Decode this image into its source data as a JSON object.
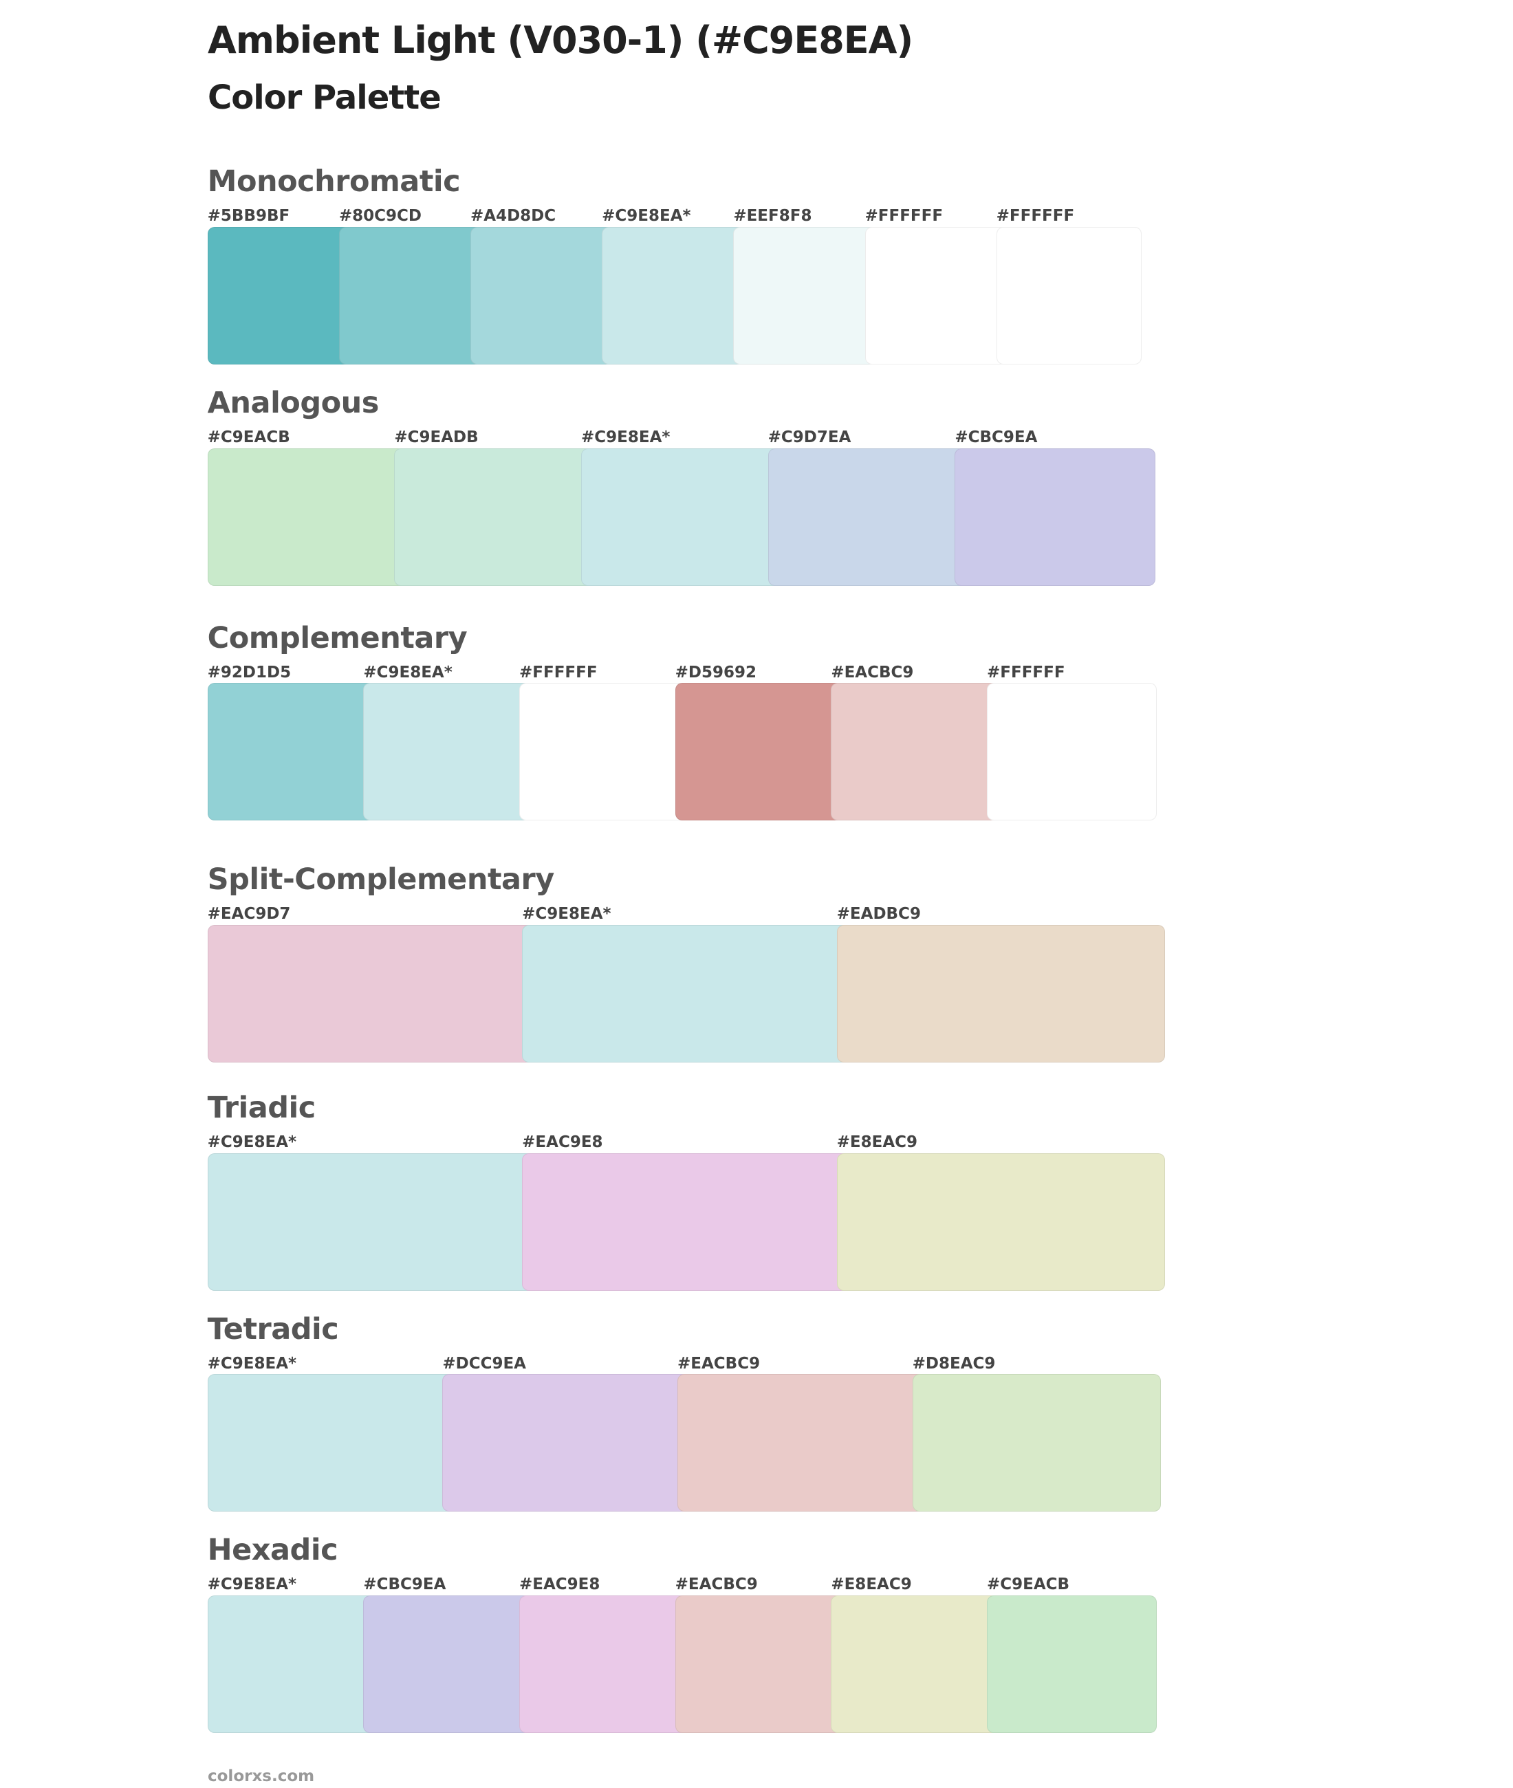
{
  "header": {
    "title": "Ambient Light (V030-1) (#C9E8EA)",
    "subtitle": "Color Palette"
  },
  "sections": [
    {
      "title": "Monochromatic",
      "swatches": [
        {
          "label": "#5BB9BF",
          "color": "#5BB9BF"
        },
        {
          "label": "#80C9CD",
          "color": "#80C9CD"
        },
        {
          "label": "#A4D8DC",
          "color": "#A4D8DC"
        },
        {
          "label": "#C9E8EA*",
          "color": "#C9E8EA"
        },
        {
          "label": "#EEF8F8",
          "color": "#EEF8F8"
        },
        {
          "label": "#FFFFFF",
          "color": "#FFFFFF"
        },
        {
          "label": "#FFFFFF",
          "color": "#FFFFFF"
        }
      ]
    },
    {
      "title": "Analogous",
      "swatches": [
        {
          "label": "#C9EACB",
          "color": "#C9EACB"
        },
        {
          "label": "#C9EADB",
          "color": "#C9EADB"
        },
        {
          "label": "#C9E8EA*",
          "color": "#C9E8EA"
        },
        {
          "label": "#C9D7EA",
          "color": "#C9D7EA"
        },
        {
          "label": "#CBC9EA",
          "color": "#CBC9EA"
        }
      ]
    },
    {
      "title": "Complementary",
      "swatches": [
        {
          "label": "#92D1D5",
          "color": "#92D1D5"
        },
        {
          "label": "#C9E8EA*",
          "color": "#C9E8EA"
        },
        {
          "label": "#FFFFFF",
          "color": "#FFFFFF"
        },
        {
          "label": "#D59692",
          "color": "#D59692"
        },
        {
          "label": "#EACBC9",
          "color": "#EACBC9"
        },
        {
          "label": "#FFFFFF",
          "color": "#FFFFFF"
        }
      ]
    },
    {
      "title": "Split-Complementary",
      "swatches": [
        {
          "label": "#EAC9D7",
          "color": "#EAC9D7"
        },
        {
          "label": "#C9E8EA*",
          "color": "#C9E8EA"
        },
        {
          "label": "#EADBC9",
          "color": "#EADBC9"
        }
      ]
    },
    {
      "title": "Triadic",
      "swatches": [
        {
          "label": "#C9E8EA*",
          "color": "#C9E8EA"
        },
        {
          "label": "#EAC9E8",
          "color": "#EAC9E8"
        },
        {
          "label": "#E8EAC9",
          "color": "#E8EAC9"
        }
      ]
    },
    {
      "title": "Tetradic",
      "swatches": [
        {
          "label": "#C9E8EA*",
          "color": "#C9E8EA"
        },
        {
          "label": "#DCC9EA",
          "color": "#DCC9EA"
        },
        {
          "label": "#EACBC9",
          "color": "#EACBC9"
        },
        {
          "label": "#D8EAC9",
          "color": "#D8EAC9"
        }
      ]
    },
    {
      "title": "Hexadic",
      "swatches": [
        {
          "label": "#C9E8EA*",
          "color": "#C9E8EA"
        },
        {
          "label": "#CBC9EA",
          "color": "#CBC9EA"
        },
        {
          "label": "#EAC9E8",
          "color": "#EAC9E8"
        },
        {
          "label": "#EACBC9",
          "color": "#EACBC9"
        },
        {
          "label": "#E8EAC9",
          "color": "#E8EAC9"
        },
        {
          "label": "#C9EACB",
          "color": "#C9EACB"
        }
      ]
    }
  ],
  "footer": "colorxs.com"
}
